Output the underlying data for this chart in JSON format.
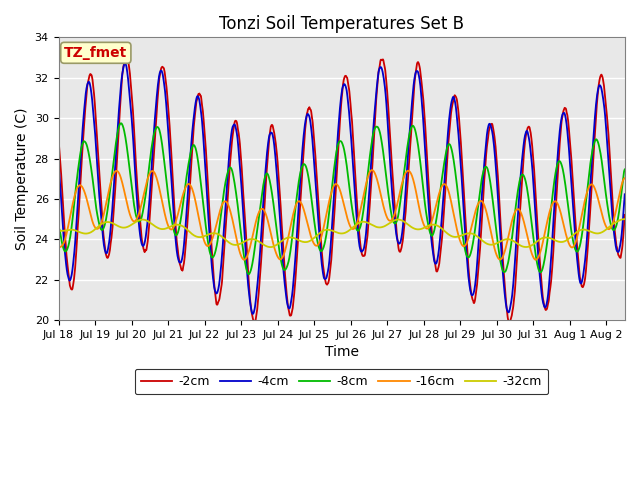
{
  "title": "Tonzi Soil Temperatures Set B",
  "xlabel": "Time",
  "ylabel": "Soil Temperature (C)",
  "ylim": [
    20,
    34
  ],
  "xlim_days": [
    0,
    15.5
  ],
  "x_tick_labels": [
    "Jul 18",
    "Jul 19",
    "Jul 20",
    "Jul 21",
    "Jul 22",
    "Jul 23",
    "Jul 24",
    "Jul 25",
    "Jul 26",
    "Jul 27",
    "Jul 28",
    "Jul 29",
    "Jul 30",
    "Jul 31",
    "Aug 1",
    "Aug 2"
  ],
  "x_tick_positions": [
    0,
    1,
    2,
    3,
    4,
    5,
    6,
    7,
    8,
    9,
    10,
    11,
    12,
    13,
    14,
    15
  ],
  "annotation_text": "TZ_fmet",
  "legend_labels": [
    "-2cm",
    "-4cm",
    "-8cm",
    "-16cm",
    "-32cm"
  ],
  "line_colors": [
    "#cc0000",
    "#0000cc",
    "#00bb00",
    "#ff8800",
    "#cccc00"
  ],
  "plot_bg_color": "#e8e8e8",
  "title_fontsize": 12,
  "axis_label_fontsize": 10,
  "tick_fontsize": 8,
  "legend_fontsize": 9,
  "grid_color": "white",
  "figsize": [
    6.4,
    4.8
  ],
  "dpi": 100
}
